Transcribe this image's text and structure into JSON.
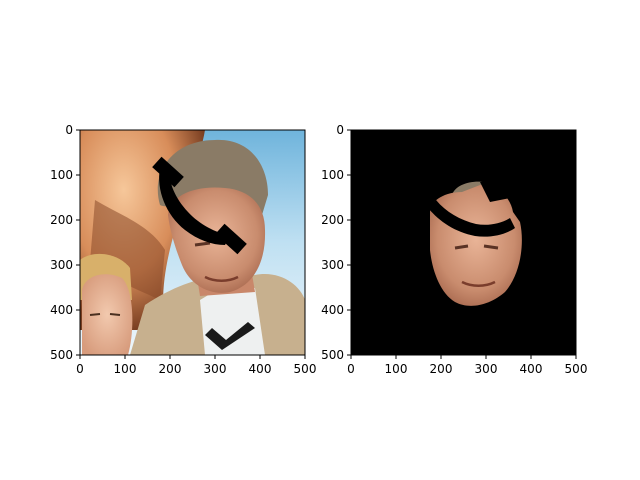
{
  "figure": {
    "background": "#ffffff",
    "panel_count": 2
  },
  "chart_data": [
    {
      "type": "image",
      "content": "photo of an older man in a tan jacket with a child at lower left, partially covered by a black telephone-handset shaped occlusion",
      "xlim": [
        0,
        500
      ],
      "ylim": [
        500,
        0
      ],
      "x_ticks": [
        "0",
        "100",
        "200",
        "300",
        "400",
        "500"
      ],
      "y_ticks": [
        "0",
        "100",
        "200",
        "300",
        "400",
        "500"
      ],
      "title": "",
      "xlabel": "",
      "ylabel": ""
    },
    {
      "type": "image",
      "content": "segmented face on black background, same black handset occlusion over the upper face",
      "xlim": [
        0,
        500
      ],
      "ylim": [
        500,
        0
      ],
      "x_ticks": [
        "0",
        "100",
        "200",
        "300",
        "400",
        "500"
      ],
      "y_ticks": [
        "0",
        "100",
        "200",
        "300",
        "400",
        "500"
      ],
      "title": "",
      "xlabel": "",
      "ylabel": ""
    }
  ]
}
